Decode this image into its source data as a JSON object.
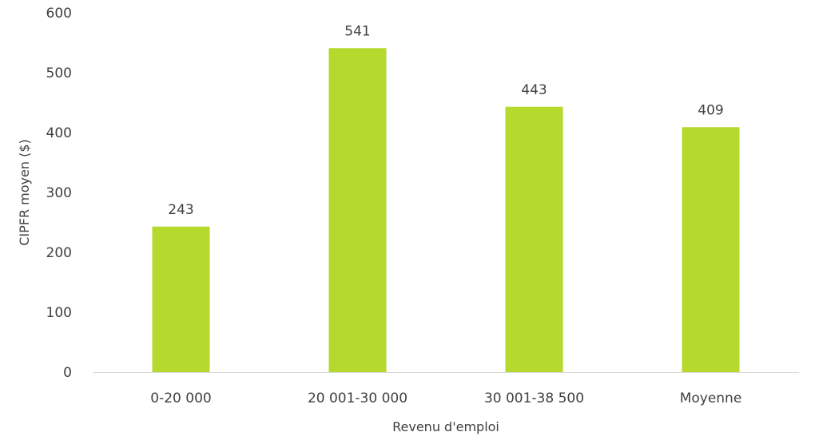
{
  "chart_data": {
    "type": "bar",
    "categories": [
      "0-20 000",
      "20 001-30 000",
      "30 001-38 500",
      "Moyenne"
    ],
    "values": [
      243,
      541,
      443,
      409
    ],
    "data_labels": [
      "243",
      "541",
      "443",
      "409"
    ],
    "xlabel": "Revenu d'emploi",
    "ylabel": "CIPFR moyen ($)",
    "ylim": [
      0,
      600
    ],
    "yticks": [
      0,
      100,
      200,
      300,
      400,
      500,
      600
    ],
    "ytick_labels": [
      "0",
      "100",
      "200",
      "300",
      "400",
      "500",
      "600"
    ],
    "grid": false,
    "legend": "none",
    "bar_color": "#b5d92c",
    "axis_color": "#d9d9d9",
    "text_color": "#404040"
  }
}
